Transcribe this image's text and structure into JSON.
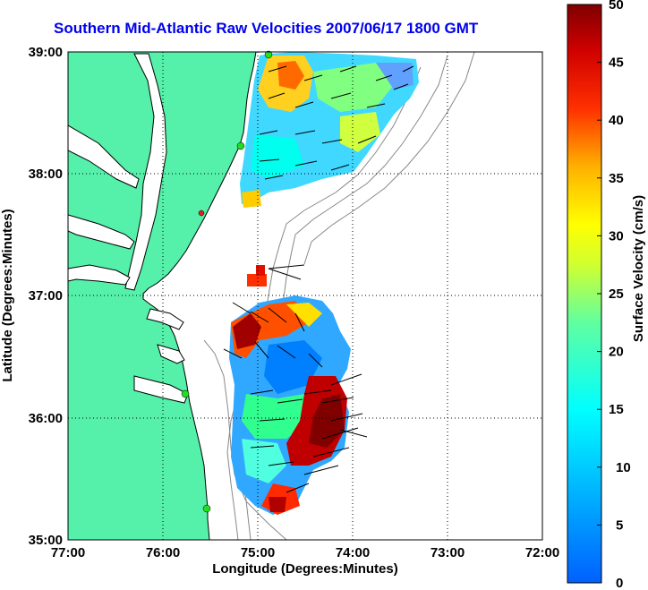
{
  "title": "Southern Mid-Atlantic Raw Velocities 2007/06/17 1800 GMT",
  "map": {
    "xlabel": "Longitude (Degrees:Minutes)",
    "ylabel": "Latitude (Degrees:Minutes)",
    "x_ticks": [
      "77:00",
      "76:00",
      "75:00",
      "74:00",
      "73:00",
      "72:00"
    ],
    "y_ticks": [
      "39:00",
      "38:00",
      "37:00",
      "36:00",
      "35:00"
    ],
    "lon_range": [
      -77,
      -72
    ],
    "lat_range": [
      35,
      39
    ],
    "grid": true,
    "colors": {
      "land": "#55f0aa",
      "water": "#ffffff",
      "coastline": "#000000",
      "isobath": "#808080",
      "station_active": "#22dd22",
      "station_offline": "#dd2222"
    }
  },
  "colorbar": {
    "label": "Surface Velocity (cm/s)",
    "ticks": [
      "50",
      "45",
      "40",
      "35",
      "30",
      "25",
      "20",
      "15",
      "10",
      "5",
      "0"
    ],
    "range": [
      0,
      50
    ],
    "colormap": "jet"
  }
}
